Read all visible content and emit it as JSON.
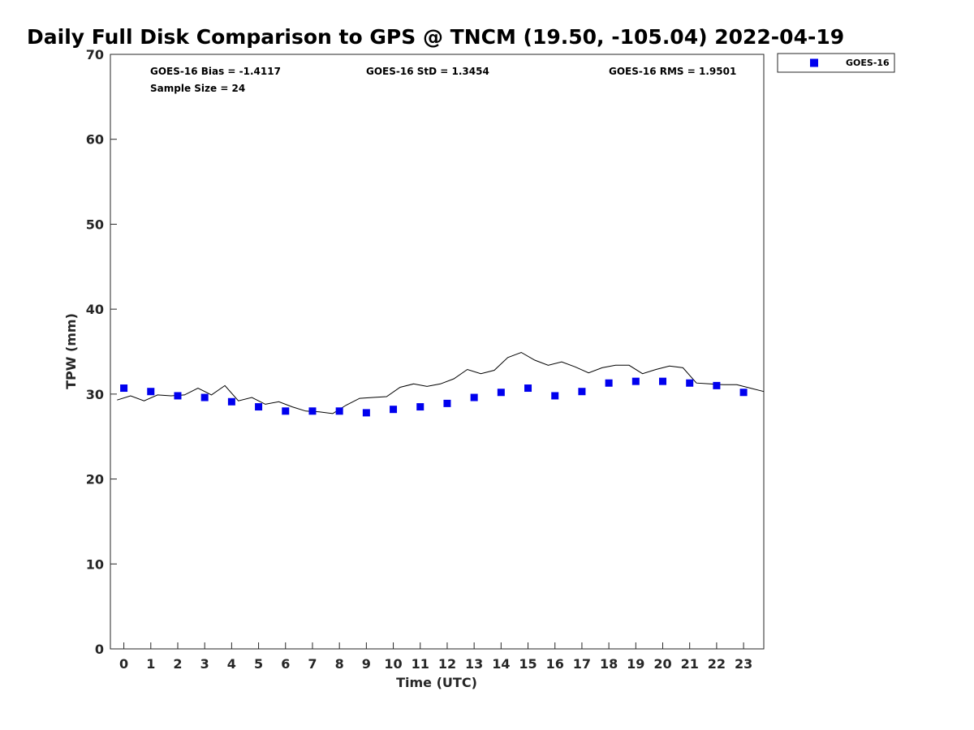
{
  "chart_data": {
    "type": "scatter",
    "title": "Daily Full Disk Comparison to GPS @ TNCM (19.50, -105.04) 2022-04-19",
    "xlabel": "Time (UTC)",
    "ylabel": "TPW (mm)",
    "xlim": [
      -0.5,
      23.75
    ],
    "ylim": [
      0,
      70
    ],
    "x_ticks": [
      0,
      1,
      2,
      3,
      4,
      5,
      6,
      7,
      8,
      9,
      10,
      11,
      12,
      13,
      14,
      15,
      16,
      17,
      18,
      19,
      20,
      21,
      22,
      23
    ],
    "y_ticks": [
      0,
      10,
      20,
      30,
      40,
      50,
      60,
      70
    ],
    "grid": false,
    "legend_position": "outside-top-right",
    "stats": {
      "bias": "GOES-16 Bias = -1.4117",
      "std": "GOES-16 StD = 1.3454",
      "rms": "GOES-16 RMS = 1.9501",
      "sample": "Sample Size = 24"
    },
    "series": [
      {
        "name": "GOES-16",
        "kind": "markers",
        "marker": "square",
        "color": "#0000ee",
        "x": [
          0,
          1,
          2,
          3,
          4,
          5,
          6,
          7,
          8,
          9,
          10,
          11,
          12,
          13,
          14,
          15,
          16,
          17,
          18,
          19,
          20,
          21,
          22,
          23
        ],
        "y": [
          30.7,
          30.3,
          29.8,
          29.6,
          29.1,
          28.5,
          28.0,
          28.0,
          28.0,
          27.8,
          28.2,
          28.5,
          28.9,
          29.6,
          30.2,
          30.7,
          29.8,
          30.3,
          31.3,
          31.5,
          31.5,
          31.3,
          31.0,
          30.2
        ]
      },
      {
        "kind": "line",
        "color": "#000000",
        "x": [
          -0.25,
          0.25,
          0.75,
          1.25,
          1.75,
          2.25,
          2.75,
          3.25,
          3.75,
          4.25,
          4.75,
          5.25,
          5.75,
          6.25,
          6.75,
          7.25,
          7.75,
          8.25,
          8.75,
          9.25,
          9.75,
          10.25,
          10.75,
          11.25,
          11.75,
          12.25,
          12.75,
          13.25,
          13.75,
          14.25,
          14.75,
          15.25,
          15.75,
          16.25,
          16.75,
          17.25,
          17.75,
          18.25,
          18.75,
          19.25,
          19.75,
          20.25,
          20.75,
          21.25,
          21.75,
          22.25,
          22.75,
          23.25,
          23.75
        ],
        "y": [
          29.3,
          29.8,
          29.2,
          29.9,
          29.8,
          29.9,
          30.7,
          29.9,
          31.0,
          29.2,
          29.6,
          28.8,
          29.1,
          28.5,
          28.0,
          27.9,
          27.7,
          28.7,
          29.5,
          29.6,
          29.7,
          30.8,
          31.2,
          30.9,
          31.2,
          31.8,
          32.9,
          32.4,
          32.8,
          34.3,
          34.9,
          34.0,
          33.4,
          33.8,
          33.2,
          32.5,
          33.1,
          33.4,
          33.4,
          32.4,
          32.9,
          33.3,
          33.1,
          31.3,
          31.2,
          31.1,
          31.1,
          30.7,
          30.3
        ]
      }
    ]
  }
}
